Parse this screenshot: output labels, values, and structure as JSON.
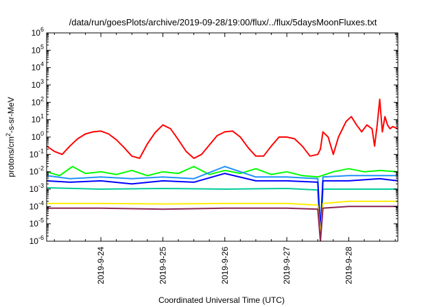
{
  "chart_data": {
    "type": "line",
    "title": "/data/run/goesPlots/archive/2019-09-28/19:00/flux/../flux/5daysMoonFluxes.txt",
    "xlabel": "Coordinated Universal Time (UTC)",
    "ylabel": "protons/cm²-s-sr-MeV",
    "xlim": [
      "2019-09-23T03:00",
      "2019-09-28T19:00"
    ],
    "ylim": [
      1e-06,
      1000000.0
    ],
    "yscale": "log",
    "grid": false,
    "legend": "none",
    "x_ticks": [
      "2019-9-24",
      "2019-9-25",
      "2019-9-26",
      "2019-9-27",
      "2019-9-28"
    ],
    "y_ticks": [
      {
        "base": "10",
        "exp": "-6"
      },
      {
        "base": "10",
        "exp": "-5"
      },
      {
        "base": "10",
        "exp": "-4"
      },
      {
        "base": "10",
        "exp": "-3"
      },
      {
        "base": "10",
        "exp": "-2"
      },
      {
        "base": "10",
        "exp": "-1"
      },
      {
        "base": "10",
        "exp": "0"
      },
      {
        "base": "10",
        "exp": "1"
      },
      {
        "base": "10",
        "exp": "2"
      },
      {
        "base": "10",
        "exp": "3"
      },
      {
        "base": "10",
        "exp": "4"
      },
      {
        "base": "10",
        "exp": "5"
      },
      {
        "base": "10",
        "exp": "6"
      }
    ],
    "series": [
      {
        "color": "#ff0000",
        "points": [
          [
            "2019-09-23T03:00",
            0.3
          ],
          [
            "2019-09-23T06:00",
            0.15
          ],
          [
            "2019-09-23T09:00",
            0.1
          ],
          [
            "2019-09-23T12:00",
            0.3
          ],
          [
            "2019-09-23T15:00",
            0.8
          ],
          [
            "2019-09-23T18:00",
            1.5
          ],
          [
            "2019-09-23T21:00",
            2.0
          ],
          [
            "2019-09-24T00:00",
            2.2
          ],
          [
            "2019-09-24T03:00",
            1.5
          ],
          [
            "2019-09-24T06:00",
            0.7
          ],
          [
            "2019-09-24T09:00",
            0.25
          ],
          [
            "2019-09-24T12:00",
            0.08
          ],
          [
            "2019-09-24T15:00",
            0.06
          ],
          [
            "2019-09-24T18:00",
            0.4
          ],
          [
            "2019-09-24T21:00",
            1.8
          ],
          [
            "2019-09-25T00:00",
            5.0
          ],
          [
            "2019-09-25T03:00",
            3.0
          ],
          [
            "2019-09-25T06:00",
            0.7
          ],
          [
            "2019-09-25T09:00",
            0.15
          ],
          [
            "2019-09-25T12:00",
            0.06
          ],
          [
            "2019-09-25T15:00",
            0.1
          ],
          [
            "2019-09-25T18:00",
            0.35
          ],
          [
            "2019-09-25T21:00",
            1.2
          ],
          [
            "2019-09-26T00:00",
            2.0
          ],
          [
            "2019-09-26T03:00",
            2.2
          ],
          [
            "2019-09-26T06:00",
            1.0
          ],
          [
            "2019-09-26T09:00",
            0.25
          ],
          [
            "2019-09-26T12:00",
            0.08
          ],
          [
            "2019-09-26T15:00",
            0.08
          ],
          [
            "2019-09-26T18:00",
            0.3
          ],
          [
            "2019-09-26T21:00",
            1.0
          ],
          [
            "2019-09-27T00:00",
            1.0
          ],
          [
            "2019-09-27T03:00",
            0.8
          ],
          [
            "2019-09-27T06:00",
            0.3
          ],
          [
            "2019-09-27T09:00",
            0.08
          ],
          [
            "2019-09-27T12:00",
            0.1
          ],
          [
            "2019-09-27T13:00",
            0.2
          ],
          [
            "2019-09-27T14:00",
            2.0
          ],
          [
            "2019-09-27T16:00",
            1.0
          ],
          [
            "2019-09-27T18:00",
            0.1
          ],
          [
            "2019-09-27T20:00",
            1.0
          ],
          [
            "2019-09-27T23:00",
            8.0
          ],
          [
            "2019-09-28T01:00",
            15
          ],
          [
            "2019-09-28T03:00",
            5.0
          ],
          [
            "2019-09-28T05:00",
            2.0
          ],
          [
            "2019-09-28T07:00",
            5.0
          ],
          [
            "2019-09-28T09:00",
            3.0
          ],
          [
            "2019-09-28T10:00",
            0.3
          ],
          [
            "2019-09-28T11:00",
            5.0
          ],
          [
            "2019-09-28T12:00",
            150
          ],
          [
            "2019-09-28T13:00",
            2.0
          ],
          [
            "2019-09-28T14:00",
            15
          ],
          [
            "2019-09-28T15:00",
            5.0
          ],
          [
            "2019-09-28T16:00",
            3.0
          ],
          [
            "2019-09-28T17:00",
            4.0
          ],
          [
            "2019-09-28T19:00",
            3.0
          ]
        ]
      },
      {
        "color": "#00ff00",
        "points": [
          [
            "2019-09-23T03:00",
            0.01
          ],
          [
            "2019-09-23T08:00",
            0.006
          ],
          [
            "2019-09-23T13:00",
            0.02
          ],
          [
            "2019-09-23T18:00",
            0.008
          ],
          [
            "2019-09-24T00:00",
            0.01
          ],
          [
            "2019-09-24T06:00",
            0.007
          ],
          [
            "2019-09-24T12:00",
            0.012
          ],
          [
            "2019-09-24T18:00",
            0.006
          ],
          [
            "2019-09-25T00:00",
            0.01
          ],
          [
            "2019-09-25T06:00",
            0.008
          ],
          [
            "2019-09-25T12:00",
            0.02
          ],
          [
            "2019-09-25T18:00",
            0.007
          ],
          [
            "2019-09-26T00:00",
            0.012
          ],
          [
            "2019-09-26T06:00",
            0.008
          ],
          [
            "2019-09-26T12:00",
            0.015
          ],
          [
            "2019-09-26T18:00",
            0.007
          ],
          [
            "2019-09-27T00:00",
            0.01
          ],
          [
            "2019-09-27T06:00",
            0.006
          ],
          [
            "2019-09-27T12:00",
            0.005
          ],
          [
            "2019-09-27T18:00",
            0.01
          ],
          [
            "2019-09-28T00:00",
            0.015
          ],
          [
            "2019-09-28T06:00",
            0.01
          ],
          [
            "2019-09-28T12:00",
            0.012
          ],
          [
            "2019-09-28T19:00",
            0.01
          ]
        ]
      },
      {
        "color": "#00cc99",
        "points": [
          [
            "2019-09-23T03:00",
            0.0012
          ],
          [
            "2019-09-24T00:00",
            0.001
          ],
          [
            "2019-09-25T00:00",
            0.0011
          ],
          [
            "2019-09-26T00:00",
            0.001
          ],
          [
            "2019-09-27T00:00",
            0.0011
          ],
          [
            "2019-09-27T12:00",
            0.0009
          ],
          [
            "2019-09-27T13:00",
            1.2e-06
          ],
          [
            "2019-09-27T14:00",
            0.001
          ],
          [
            "2019-09-28T00:00",
            0.001
          ],
          [
            "2019-09-28T19:00",
            0.001
          ]
        ]
      },
      {
        "color": "#1e90ff",
        "points": [
          [
            "2019-09-23T03:00",
            0.006
          ],
          [
            "2019-09-23T12:00",
            0.004
          ],
          [
            "2019-09-24T00:00",
            0.005
          ],
          [
            "2019-09-24T12:00",
            0.004
          ],
          [
            "2019-09-25T00:00",
            0.005
          ],
          [
            "2019-09-25T12:00",
            0.004
          ],
          [
            "2019-09-26T00:00",
            0.02
          ],
          [
            "2019-09-26T12:00",
            0.005
          ],
          [
            "2019-09-27T00:00",
            0.005
          ],
          [
            "2019-09-27T12:00",
            0.004
          ],
          [
            "2019-09-27T13:00",
            5e-06
          ],
          [
            "2019-09-27T14:00",
            0.005
          ],
          [
            "2019-09-28T00:00",
            0.006
          ],
          [
            "2019-09-28T12:00",
            0.006
          ],
          [
            "2019-09-28T19:00",
            0.006
          ]
        ]
      },
      {
        "color": "#0000ff",
        "points": [
          [
            "2019-09-23T03:00",
            0.003
          ],
          [
            "2019-09-23T12:00",
            0.0025
          ],
          [
            "2019-09-24T00:00",
            0.003
          ],
          [
            "2019-09-24T12:00",
            0.002
          ],
          [
            "2019-09-25T00:00",
            0.003
          ],
          [
            "2019-09-25T12:00",
            0.0025
          ],
          [
            "2019-09-26T00:00",
            0.008
          ],
          [
            "2019-09-26T12:00",
            0.003
          ],
          [
            "2019-09-27T00:00",
            0.003
          ],
          [
            "2019-09-27T12:00",
            0.0025
          ],
          [
            "2019-09-27T13:00",
            3e-06
          ],
          [
            "2019-09-27T14:00",
            0.003
          ],
          [
            "2019-09-28T00:00",
            0.003
          ],
          [
            "2019-09-28T12:00",
            0.004
          ],
          [
            "2019-09-28T19:00",
            0.003
          ]
        ]
      },
      {
        "color": "#ffee00",
        "points": [
          [
            "2019-09-23T03:00",
            0.00015
          ],
          [
            "2019-09-24T00:00",
            0.00015
          ],
          [
            "2019-09-25T00:00",
            0.00014
          ],
          [
            "2019-09-26T00:00",
            0.00015
          ],
          [
            "2019-09-27T00:00",
            0.00015
          ],
          [
            "2019-09-27T12:00",
            0.00012
          ],
          [
            "2019-09-27T13:00",
            2e-06
          ],
          [
            "2019-09-27T14:00",
            0.00015
          ],
          [
            "2019-09-28T00:00",
            0.0002
          ],
          [
            "2019-09-28T19:00",
            0.0002
          ]
        ]
      },
      {
        "color": "#8b2252",
        "points": [
          [
            "2019-09-23T03:00",
            8e-05
          ],
          [
            "2019-09-24T00:00",
            8e-05
          ],
          [
            "2019-09-25T00:00",
            7e-05
          ],
          [
            "2019-09-26T00:00",
            8e-05
          ],
          [
            "2019-09-27T00:00",
            8e-05
          ],
          [
            "2019-09-27T12:00",
            7e-05
          ],
          [
            "2019-09-27T13:00",
            1e-06
          ],
          [
            "2019-09-27T14:00",
            8e-05
          ],
          [
            "2019-09-28T00:00",
            0.0001
          ],
          [
            "2019-09-28T19:00",
            0.0001
          ]
        ]
      }
    ]
  }
}
